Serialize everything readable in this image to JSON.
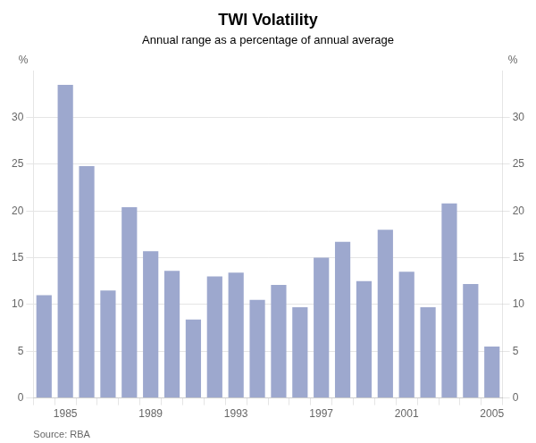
{
  "chart_data": {
    "type": "bar",
    "title": "TWI Volatility",
    "subtitle": "Annual range as a percentage of annual average",
    "source": "Source: RBA",
    "categories": [
      null,
      "1985",
      null,
      null,
      null,
      "1989",
      null,
      null,
      null,
      "1993",
      null,
      null,
      null,
      "1997",
      null,
      null,
      null,
      "2001",
      null,
      null,
      null,
      "2005"
    ],
    "values": [
      11.0,
      33.5,
      24.8,
      11.5,
      20.4,
      15.7,
      13.6,
      8.4,
      13.0,
      13.4,
      10.5,
      12.1,
      9.7,
      15.0,
      16.7,
      12.5,
      18.0,
      13.5,
      9.7,
      20.8,
      12.2,
      5.5
    ],
    "color": "#9da8ce",
    "ylim": [
      0,
      35
    ],
    "yticks": [
      0,
      5,
      10,
      15,
      20,
      25,
      30
    ],
    "y2lim": [
      0,
      35
    ],
    "y2ticks": [
      0,
      5,
      10,
      15,
      20,
      25,
      30
    ],
    "ylabel": "%",
    "y2label": "%",
    "grid": true
  }
}
